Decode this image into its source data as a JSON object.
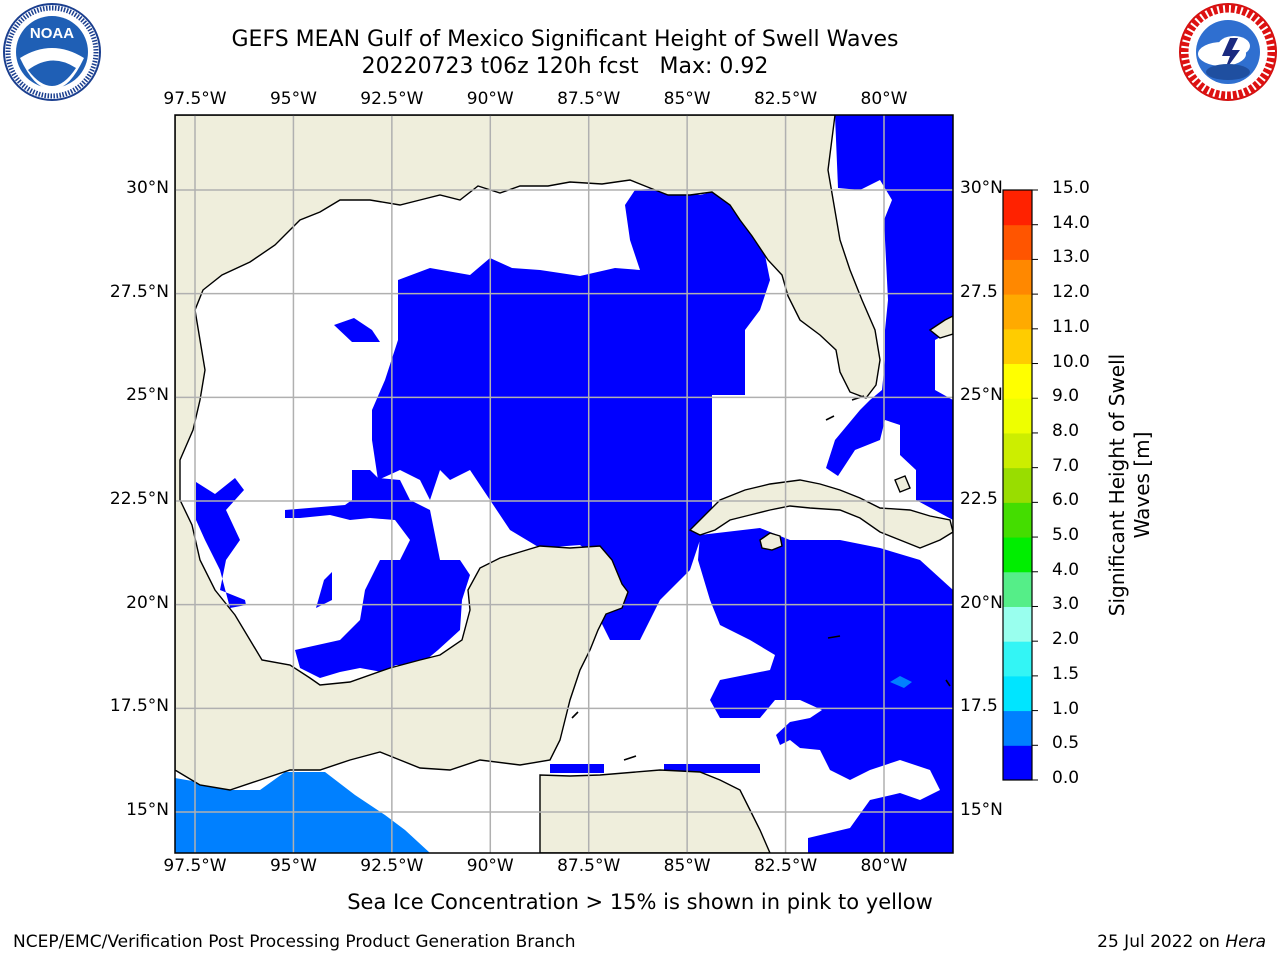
{
  "title": {
    "line1": "GEFS MEAN Gulf of Mexico Significant Height of Swell Waves",
    "line2": "20220723 t06z 120h fcst   Max: 0.92"
  },
  "logos": {
    "left": {
      "name": "noaa-logo",
      "text": "NOAA",
      "ring_text": "NATIONAL OCEANIC AND ATMOSPHERIC ADMINISTRATION · U.S. DEPARTMENT OF COMMERCE"
    },
    "right": {
      "name": "nws-logo",
      "ring_text": "NATIONAL WEATHER SERVICE"
    }
  },
  "map": {
    "lon_labels": [
      "97.5°W",
      "95°W",
      "92.5°W",
      "90°W",
      "87.5°W",
      "85°W",
      "82.5°W",
      "80°W"
    ],
    "lat_labels_left": [
      "30°N",
      "27.5°N",
      "25°N",
      "22.5°N",
      "20°N",
      "17.5°N",
      "15°N"
    ],
    "lat_labels_right": [
      "30°N",
      "27.5",
      "25°N",
      "22.5",
      "20°N",
      "17.5",
      "15°N"
    ],
    "lon_values": [
      -97.5,
      -95,
      -92.5,
      -90,
      -87.5,
      -85,
      -82.5,
      -80
    ],
    "lat_values": [
      30,
      27.5,
      25,
      22.5,
      20,
      17.5,
      15
    ],
    "colors": {
      "land": "#efeedc",
      "swell_low": "#0000ff",
      "swell_mid": "#0080ff",
      "grid": "#b0b0b0"
    }
  },
  "colorbar": {
    "label": "Significant Height of Swell Waves [m]",
    "tick_labels": [
      "15.0",
      "14.0",
      "13.0",
      "12.0",
      "11.0",
      "10.0",
      "9.0",
      "8.0",
      "7.0",
      "6.0",
      "5.0",
      "4.0",
      "3.0",
      "2.0",
      "1.5",
      "1.0",
      "0.5",
      "0.0"
    ],
    "bins": [
      {
        "from": 0.0,
        "to": 0.5,
        "color": "#0000ff"
      },
      {
        "from": 0.5,
        "to": 1.0,
        "color": "#0080ff"
      },
      {
        "from": 1.0,
        "to": 1.5,
        "color": "#00e5ff"
      },
      {
        "from": 1.5,
        "to": 2.0,
        "color": "#33f5f5"
      },
      {
        "from": 2.0,
        "to": 3.0,
        "color": "#99ffee"
      },
      {
        "from": 3.0,
        "to": 4.0,
        "color": "#55ee88"
      },
      {
        "from": 4.0,
        "to": 5.0,
        "color": "#00ee00"
      },
      {
        "from": 5.0,
        "to": 6.0,
        "color": "#44dd00"
      },
      {
        "from": 6.0,
        "to": 7.0,
        "color": "#99dd00"
      },
      {
        "from": 7.0,
        "to": 8.0,
        "color": "#ccee00"
      },
      {
        "from": 8.0,
        "to": 9.0,
        "color": "#eeff00"
      },
      {
        "from": 9.0,
        "to": 10.0,
        "color": "#ffff00"
      },
      {
        "from": 10.0,
        "to": 11.0,
        "color": "#ffcc00"
      },
      {
        "from": 11.0,
        "to": 12.0,
        "color": "#ffaa00"
      },
      {
        "from": 12.0,
        "to": 13.0,
        "color": "#ff8800"
      },
      {
        "from": 13.0,
        "to": 14.0,
        "color": "#ff5500"
      },
      {
        "from": 14.0,
        "to": 15.0,
        "color": "#ff2200"
      }
    ]
  },
  "note": "Sea Ice Concentration > 15% is shown in pink to yellow",
  "footer": {
    "left": "NCEP/EMC/Verification Post Processing Product Generation Branch",
    "right_date": "25 Jul 2022 on",
    "right_host": "Hera"
  }
}
